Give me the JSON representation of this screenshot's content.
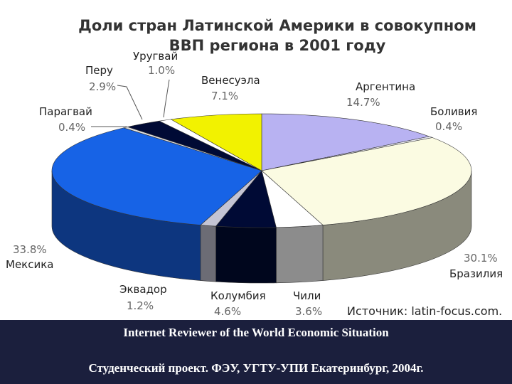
{
  "chart_data": {
    "type": "pie3d",
    "title": "Доли стран Латинской Америки в совокупном ВВП региона в 2001 году",
    "categories": [
      "Аргентина",
      "Боливия",
      "Бразилия",
      "Чили",
      "Колумбия",
      "Эквадор",
      "Мексика",
      "Парагвай",
      "Перу",
      "Уругвай",
      "Венесуэла"
    ],
    "values": [
      14.7,
      0.4,
      30.1,
      3.6,
      4.6,
      1.2,
      33.8,
      0.4,
      2.9,
      1.0,
      7.1
    ],
    "value_labels": [
      "14.7%",
      "0.4%",
      "30.1%",
      "3.6%",
      "4.6%",
      "1.2%",
      "33.8%",
      "0.4%",
      "2.9%",
      "1.0%",
      "7.1%"
    ],
    "colors": [
      "#b8b2f2",
      "#e8e8f0",
      "#fbfbe2",
      "#ffffff",
      "#000a35",
      "#c4c4d4",
      "#1763e6",
      "#e0e0e0",
      "#000a35",
      "#ffffff",
      "#f2f200"
    ],
    "source": "Источник: latin-focus.com."
  },
  "footer": {
    "lines": [
      "Internet Reviewer of the World Economic Situation",
      "Студенческий проект. ФЭУ, УГТУ-УПИ Екатеринбург, 2004г."
    ]
  }
}
